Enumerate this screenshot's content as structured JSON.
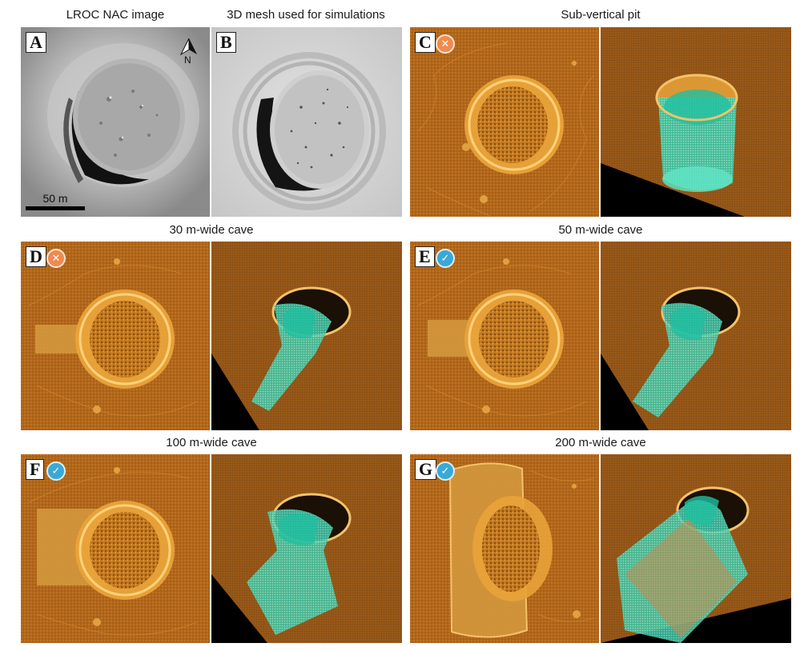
{
  "captions": {
    "a": "LROC NAC image",
    "b": "3D mesh used for simulations",
    "c": "Sub-vertical pit",
    "d": "30 m-wide cave",
    "e": "50 m-wide cave",
    "f": "100 m-wide cave",
    "g": "200 m-wide cave"
  },
  "panels": {
    "a": {
      "letter": "A",
      "north_label": "N",
      "scale_label": "50 m"
    },
    "b": {
      "letter": "B"
    },
    "c": {
      "letter": "C",
      "status": "rejected",
      "status_icon": "cross-icon"
    },
    "d": {
      "letter": "D",
      "status": "rejected",
      "status_icon": "cross-icon"
    },
    "e": {
      "letter": "E",
      "status": "accepted",
      "status_icon": "check-icon"
    },
    "f": {
      "letter": "F",
      "status": "accepted",
      "status_icon": "check-icon"
    },
    "g": {
      "letter": "G",
      "status": "accepted",
      "status_icon": "check-icon"
    }
  },
  "colors": {
    "terrain_orange": "#b0661a",
    "pit_rim_gold": "#f2b64a",
    "cave_cyan": "#4fe0c0",
    "background_black": "#000000",
    "nac_gray": "#9a9a9a",
    "reject_badge": "#f08a50",
    "accept_badge": "#3aa9d8"
  },
  "glyphs": {
    "cross": "✕",
    "check": "✓"
  }
}
